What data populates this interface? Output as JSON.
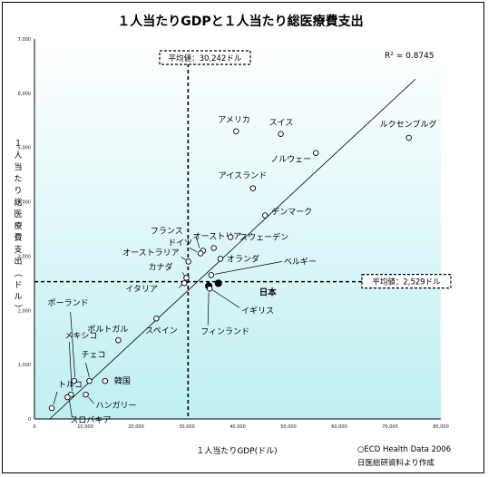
{
  "chart_data": {
    "type": "scatter",
    "title": "１人当たりGDPと１人当たり総医療費支出",
    "xlabel": "１人当たりGDP(ドル)",
    "ylabel": "１人当たり総医療費支出（ドル）",
    "xlim": [
      0,
      80000
    ],
    "ylim": [
      0,
      7000
    ],
    "x_ticks": [
      "0",
      "10,000",
      "20,000",
      "30,000",
      "40,000",
      "50,000",
      "60,000",
      "70,000",
      "80,000"
    ],
    "y_ticks": [
      "0",
      "1,000",
      "2,000",
      "3,000",
      "4,000",
      "5,000",
      "6,000",
      "7,000"
    ],
    "r_squared": "R² = 0.8745",
    "trendline": {
      "x": [
        3000,
        75000
      ],
      "y": [
        0,
        6260
      ]
    },
    "averages": {
      "x": {
        "value": 30242,
        "label": "平均値：30,242ドル"
      },
      "y": {
        "value": 2529,
        "label": "平均値：2,529ドル"
      }
    },
    "points": [
      {
        "name": "アメリカ",
        "x": 39700,
        "y": 5300
      },
      {
        "name": "スイス",
        "x": 48500,
        "y": 5250
      },
      {
        "name": "ノルウェー",
        "x": 55400,
        "y": 4900
      },
      {
        "name": "ルクセンブルグ",
        "x": 73700,
        "y": 5180
      },
      {
        "name": "アイスランド",
        "x": 43000,
        "y": 4250
      },
      {
        "name": "デンマーク",
        "x": 45400,
        "y": 3750
      },
      {
        "name": "オーストリア",
        "x": 35300,
        "y": 3150
      },
      {
        "name": "フランス",
        "x": 33200,
        "y": 3100
      },
      {
        "name": "ドイツ",
        "x": 32700,
        "y": 3050
      },
      {
        "name": "スウェーデン",
        "x": 38600,
        "y": 3350
      },
      {
        "name": "オーストラリア",
        "x": 30300,
        "y": 2900
      },
      {
        "name": "オランダ",
        "x": 36600,
        "y": 2950
      },
      {
        "name": "カナダ",
        "x": 29900,
        "y": 2600
      },
      {
        "name": "ベルギー",
        "x": 34800,
        "y": 2650
      },
      {
        "name": "イタリア",
        "x": 29500,
        "y": 2500
      },
      {
        "name": "日本",
        "x": 36200,
        "y": 2500,
        "highlight": true
      },
      {
        "name": "イギリス",
        "x": 34300,
        "y": 2450,
        "highlight": true
      },
      {
        "name": "フィンランド",
        "x": 34500,
        "y": 2400
      },
      {
        "name": "スペイン",
        "x": 24000,
        "y": 1850
      },
      {
        "name": "ポルトガル",
        "x": 16500,
        "y": 1450
      },
      {
        "name": "ポーランド",
        "x": 7800,
        "y": 700
      },
      {
        "name": "メキシコ",
        "x": 7200,
        "y": 450
      },
      {
        "name": "チェコ",
        "x": 10800,
        "y": 700
      },
      {
        "name": "韓国",
        "x": 13900,
        "y": 700
      },
      {
        "name": "ハンガリー",
        "x": 10100,
        "y": 450
      },
      {
        "name": "スロバキア",
        "x": 6500,
        "y": 400
      },
      {
        "name": "トルコ",
        "x": 3400,
        "y": 200
      }
    ],
    "sources": [
      "○ECD Health Data 2006",
      "日医総研資料より作成"
    ]
  }
}
